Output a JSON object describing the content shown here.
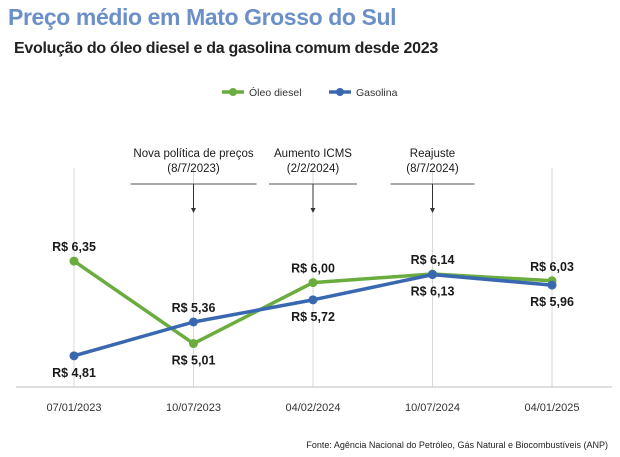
{
  "header": {
    "title": "Preço médio em Mato Grosso do Sul",
    "subtitle": "Evolução do óleo diesel e da gasolina comum desde 2023"
  },
  "chart_data": {
    "type": "line",
    "categories": [
      "07/01/2023",
      "10/07/2023",
      "04/02/2024",
      "10/07/2024",
      "04/01/2025"
    ],
    "ylim": [
      3.8,
      7.7
    ],
    "grid": "vertical",
    "legend_position": "top-center",
    "series": [
      {
        "name": "Óleo diesel",
        "color": "#6aac3e",
        "values": [
          6.35,
          5.01,
          6.0,
          6.14,
          6.03
        ],
        "labels": [
          "R$ 6,35",
          "R$ 5,01",
          "R$ 6,00",
          "R$ 6,14",
          "R$ 6,03"
        ],
        "label_side": [
          "above",
          "below",
          "above",
          "above",
          "above"
        ]
      },
      {
        "name": "Gasolina",
        "color": "#3a68b0",
        "values": [
          4.81,
          5.36,
          5.72,
          6.13,
          5.96
        ],
        "labels": [
          "R$ 4,81",
          "R$ 5,36",
          "R$ 5,72",
          "R$ 6,13",
          "R$ 5,96"
        ],
        "label_side": [
          "below",
          "above",
          "below",
          "below",
          "below"
        ]
      }
    ],
    "annotations": [
      {
        "category_index": 1,
        "lines": [
          "Nova política de preços",
          "(8/7/2023)"
        ]
      },
      {
        "category_index": 2,
        "lines": [
          "Aumento ICMS",
          "(2/2/2024)"
        ]
      },
      {
        "category_index": 3,
        "lines": [
          "Reajuste",
          "(8/7/2024)"
        ]
      }
    ]
  },
  "footer": {
    "source": "Fonte: Agência Nacional do Petróleo, Gás Natural e Biocombustíveis (ANP)"
  }
}
